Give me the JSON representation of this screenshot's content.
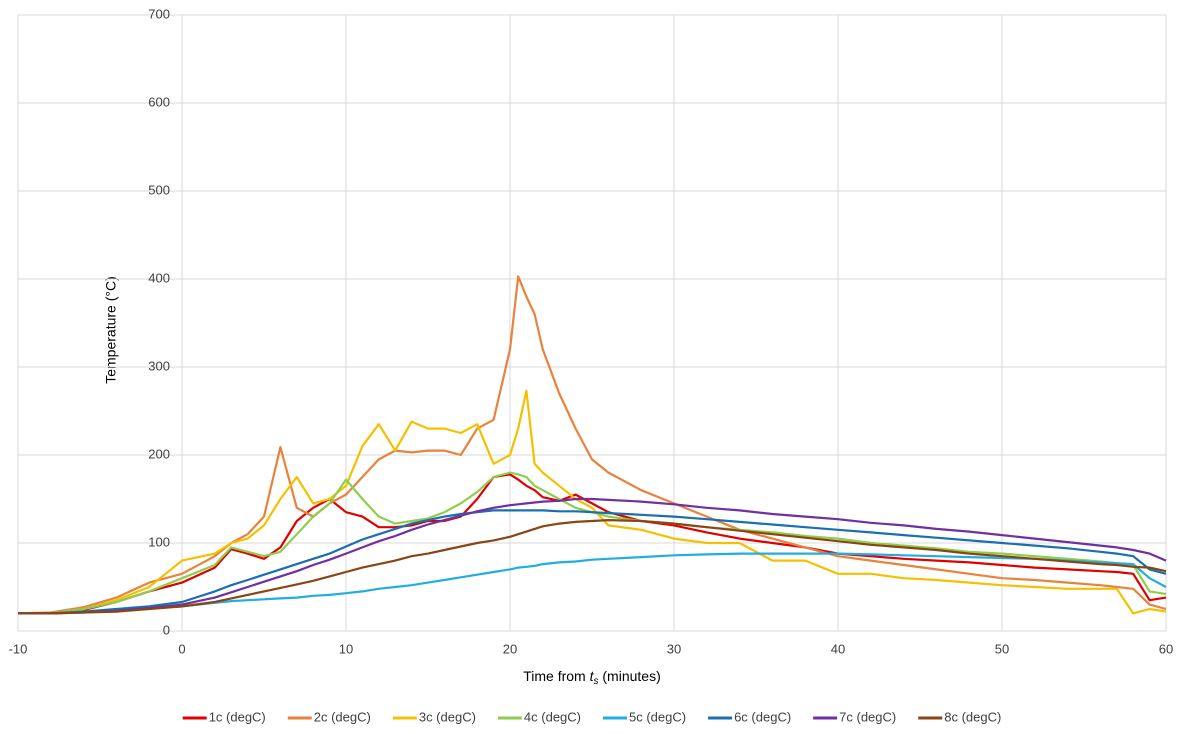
{
  "chart_data": {
    "type": "line",
    "xlabel": {
      "prefix": "Time from",
      "symbol": "t",
      "subscript": "s",
      "suffix": "(minutes)"
    },
    "ylabel": "Temperature (°C)",
    "x": [
      -10,
      -8,
      -6,
      -4,
      -2,
      0,
      2,
      3,
      4,
      5,
      6,
      7,
      8,
      9,
      10,
      11,
      12,
      13,
      14,
      15,
      16,
      17,
      18,
      19,
      20,
      20.5,
      21,
      21.5,
      22,
      23,
      24,
      25,
      26,
      28,
      30,
      32,
      34,
      36,
      38,
      40,
      42,
      44,
      46,
      48,
      50,
      52,
      54,
      56,
      57,
      58,
      59,
      60
    ],
    "xlim": [
      -10,
      60
    ],
    "xticks": [
      -10,
      0,
      10,
      20,
      30,
      40,
      50,
      60
    ],
    "ylim": [
      0,
      700
    ],
    "yticks": [
      0,
      100,
      200,
      300,
      400,
      500,
      600,
      700
    ],
    "grid": true,
    "legend": "bottom",
    "series": [
      {
        "name": "1c (degC)",
        "color": "#e00000",
        "values": [
          20,
          20,
          24,
          33,
          45,
          55,
          72,
          93,
          88,
          82,
          95,
          125,
          140,
          150,
          135,
          130,
          118,
          118,
          120,
          125,
          125,
          130,
          150,
          175,
          178,
          172,
          165,
          160,
          152,
          148,
          155,
          145,
          135,
          125,
          120,
          112,
          105,
          100,
          95,
          88,
          85,
          82,
          80,
          78,
          75,
          72,
          70,
          68,
          67,
          65,
          35,
          38
        ]
      },
      {
        "name": "2c (degC)",
        "color": "#e8823c",
        "values": [
          20,
          21,
          27,
          38,
          55,
          65,
          85,
          100,
          110,
          130,
          209,
          140,
          130,
          145,
          155,
          175,
          195,
          205,
          203,
          205,
          205,
          200,
          230,
          240,
          320,
          403,
          380,
          360,
          320,
          270,
          230,
          195,
          180,
          160,
          145,
          130,
          115,
          105,
          95,
          85,
          80,
          75,
          70,
          65,
          60,
          58,
          55,
          52,
          50,
          48,
          30,
          25
        ]
      },
      {
        "name": "3c (degC)",
        "color": "#f5c000",
        "values": [
          20,
          20,
          25,
          35,
          50,
          80,
          88,
          100,
          105,
          120,
          150,
          175,
          145,
          150,
          165,
          210,
          235,
          205,
          238,
          230,
          230,
          225,
          235,
          190,
          200,
          230,
          273,
          190,
          180,
          165,
          150,
          140,
          120,
          115,
          105,
          100,
          100,
          80,
          80,
          65,
          65,
          60,
          58,
          55,
          52,
          50,
          48,
          48,
          48,
          20,
          25,
          22
        ]
      },
      {
        "name": "4c (degC)",
        "color": "#8fce4c",
        "values": [
          20,
          20,
          25,
          33,
          45,
          60,
          75,
          95,
          90,
          85,
          90,
          110,
          130,
          145,
          172,
          150,
          130,
          122,
          125,
          128,
          135,
          145,
          158,
          175,
          180,
          178,
          175,
          165,
          160,
          150,
          140,
          135,
          130,
          125,
          122,
          118,
          115,
          112,
          108,
          105,
          100,
          97,
          94,
          90,
          88,
          85,
          82,
          79,
          77,
          75,
          45,
          42
        ]
      },
      {
        "name": "5c (degC)",
        "color": "#22ade0",
        "values": [
          20,
          20,
          22,
          24,
          26,
          28,
          32,
          34,
          35,
          36,
          37,
          38,
          40,
          41,
          43,
          45,
          48,
          50,
          52,
          55,
          58,
          61,
          64,
          67,
          70,
          72,
          73,
          74,
          76,
          78,
          79,
          81,
          82,
          84,
          86,
          87,
          88,
          88,
          88,
          88,
          87,
          86,
          85,
          84,
          83,
          82,
          80,
          78,
          77,
          76,
          60,
          50
        ]
      },
      {
        "name": "6c (degC)",
        "color": "#1a6fb0",
        "values": [
          20,
          20,
          22,
          25,
          28,
          33,
          45,
          52,
          58,
          64,
          70,
          76,
          82,
          88,
          96,
          104,
          110,
          116,
          122,
          126,
          130,
          133,
          135,
          137,
          137,
          137,
          137,
          137,
          137,
          136,
          136,
          135,
          134,
          132,
          130,
          127,
          124,
          121,
          118,
          115,
          112,
          109,
          106,
          103,
          100,
          97,
          94,
          90,
          88,
          85,
          70,
          65
        ]
      },
      {
        "name": "7c (degC)",
        "color": "#7030a0",
        "values": [
          20,
          20,
          21,
          23,
          26,
          30,
          38,
          44,
          50,
          56,
          62,
          68,
          75,
          81,
          88,
          95,
          102,
          108,
          115,
          121,
          126,
          131,
          136,
          140,
          143,
          144,
          145,
          146,
          147,
          148,
          150,
          150,
          149,
          147,
          144,
          140,
          137,
          133,
          130,
          127,
          123,
          120,
          116,
          113,
          109,
          105,
          101,
          97,
          95,
          92,
          88,
          80
        ]
      },
      {
        "name": "8c (degC)",
        "color": "#8b4513",
        "values": [
          20,
          20,
          21,
          22,
          25,
          28,
          33,
          37,
          41,
          45,
          49,
          53,
          57,
          62,
          67,
          72,
          76,
          80,
          85,
          88,
          92,
          96,
          100,
          103,
          107,
          110,
          113,
          116,
          119,
          122,
          124,
          125,
          126,
          125,
          122,
          118,
          114,
          110,
          106,
          102,
          98,
          95,
          92,
          88,
          85,
          82,
          79,
          76,
          75,
          73,
          72,
          68
        ]
      }
    ]
  }
}
